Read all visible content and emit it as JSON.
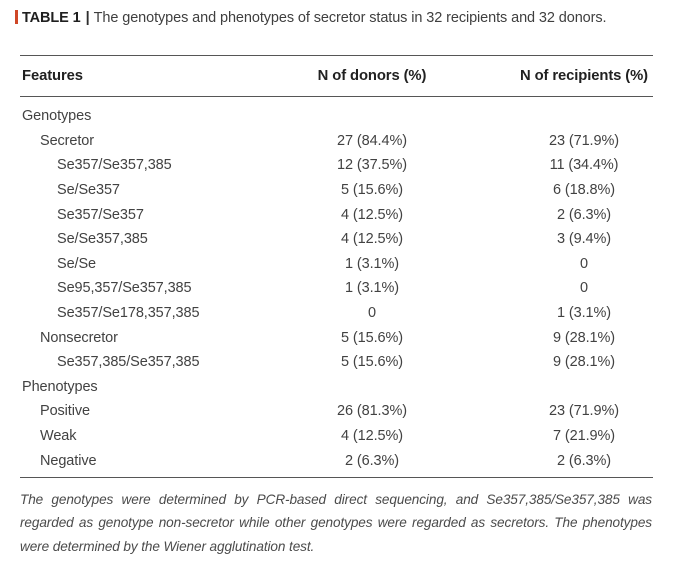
{
  "caption": {
    "label": "TABLE 1",
    "separator": "|",
    "text": "The genotypes and phenotypes of secretor status in 32 recipients and 32 donors."
  },
  "columns": {
    "features": "Features",
    "donors": "N of donors (%)",
    "recipients": "N of recipients (%)"
  },
  "rows": [
    {
      "feature": "Genotypes",
      "indent": 0,
      "donors": "",
      "recipients": ""
    },
    {
      "feature": "Secretor",
      "indent": 1,
      "donors": "27 (84.4%)",
      "recipients": "23 (71.9%)"
    },
    {
      "feature": "Se357/Se357,385",
      "indent": 2,
      "donors": "12 (37.5%)",
      "recipients": "11 (34.4%)"
    },
    {
      "feature": "Se/Se357",
      "indent": 2,
      "donors": "5 (15.6%)",
      "recipients": "6 (18.8%)"
    },
    {
      "feature": "Se357/Se357",
      "indent": 2,
      "donors": "4 (12.5%)",
      "recipients": "2 (6.3%)"
    },
    {
      "feature": "Se/Se357,385",
      "indent": 2,
      "donors": "4 (12.5%)",
      "recipients": "3 (9.4%)"
    },
    {
      "feature": "Se/Se",
      "indent": 2,
      "donors": "1 (3.1%)",
      "recipients": "0"
    },
    {
      "feature": "Se95,357/Se357,385",
      "indent": 2,
      "donors": "1 (3.1%)",
      "recipients": "0"
    },
    {
      "feature": "Se357/Se178,357,385",
      "indent": 2,
      "donors": "0",
      "recipients": "1 (3.1%)"
    },
    {
      "feature": "Nonsecretor",
      "indent": 1,
      "donors": "5 (15.6%)",
      "recipients": "9 (28.1%)"
    },
    {
      "feature": "Se357,385/Se357,385",
      "indent": 2,
      "donors": "5 (15.6%)",
      "recipients": "9 (28.1%)"
    },
    {
      "feature": "Phenotypes",
      "indent": 0,
      "donors": "",
      "recipients": ""
    },
    {
      "feature": "Positive",
      "indent": 1,
      "donors": "26 (81.3%)",
      "recipients": "23 (71.9%)"
    },
    {
      "feature": "Weak",
      "indent": 1,
      "donors": "4 (12.5%)",
      "recipients": "7 (21.9%)"
    },
    {
      "feature": "Negative",
      "indent": 1,
      "donors": "2 (6.3%)",
      "recipients": "2 (6.3%)"
    }
  ],
  "footnote": "The genotypes were determined by PCR-based direct sequencing, and Se357,385/Se357,385 was regarded as genotype non-secretor while other genotypes were regarded as secretors. The phenotypes were determined by the Wiener agglutination test.",
  "colors": {
    "accent_red": "#cf4727",
    "rule_gray": "#565656",
    "body_text": "#424242",
    "heading_text": "#212121"
  }
}
